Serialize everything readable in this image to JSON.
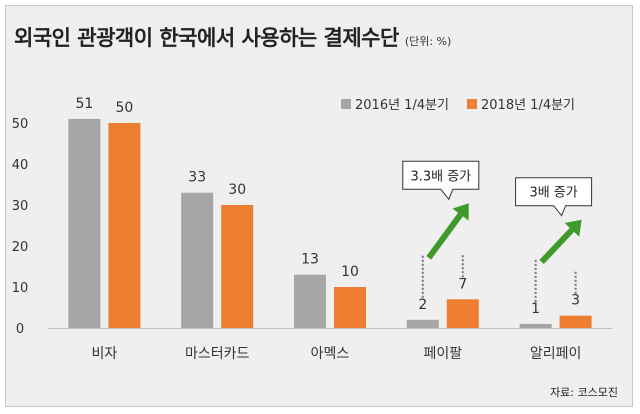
{
  "title": "외국인 관광객이 한국에서 사용하는 결제수단",
  "unit": "(단위: %)",
  "source": "자료: 코스모진",
  "colors": {
    "series_2016": "#a6a6a6",
    "series_2018": "#ed7d31",
    "arrow": "#3f9a2c"
  },
  "annotations": [
    {
      "category": "페이팔",
      "text": "3.3배 증가"
    },
    {
      "category": "알리페이",
      "text": "3배 증가"
    }
  ],
  "chart_data": {
    "type": "bar",
    "title": "외국인 관광객이 한국에서 사용하는 결제수단",
    "categories": [
      "비자",
      "마스터카드",
      "아멕스",
      "페이팔",
      "알리페이"
    ],
    "series": [
      {
        "name": "2016년 1/4분기",
        "values": [
          51,
          33,
          13,
          2,
          1
        ]
      },
      {
        "name": "2018년 1/4분기",
        "values": [
          50,
          30,
          10,
          7,
          3
        ]
      }
    ],
    "ylim": [
      0,
      50
    ],
    "yticks": [
      0,
      10,
      20,
      30,
      40,
      50
    ],
    "xlabel": "",
    "ylabel": "",
    "legend": "top-right",
    "grid": false
  }
}
